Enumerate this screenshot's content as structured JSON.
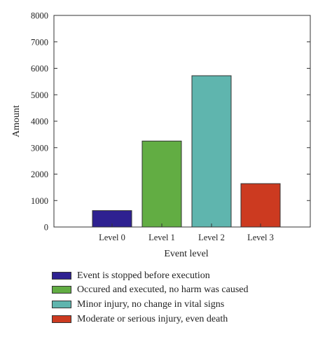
{
  "chart_data": {
    "type": "bar",
    "categories": [
      "Level 0",
      "Level 1",
      "Level 2",
      "Level 3"
    ],
    "values": [
      620,
      3250,
      5720,
      1640
    ],
    "colors": [
      "#2e2191",
      "#62ad43",
      "#5fb5ae",
      "#cc3a20"
    ],
    "xlabel": "Event level",
    "ylabel": "Amount",
    "ylim": [
      0,
      8000
    ],
    "yticks": [
      0,
      1000,
      2000,
      3000,
      4000,
      5000,
      6000,
      7000,
      8000
    ],
    "grid": false,
    "legend_placement": "bottom"
  },
  "legend": {
    "items": [
      "Event is stopped before execution",
      "Occured and executed, no harm was caused",
      "Minor injury, no change in vital signs",
      "Moderate or serious injury, even death"
    ]
  }
}
